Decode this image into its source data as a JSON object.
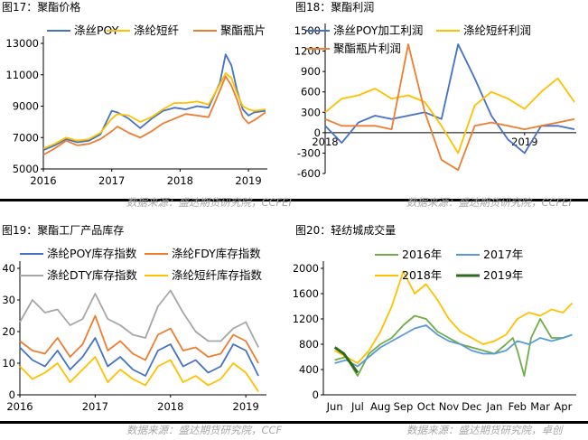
{
  "charts": [
    {
      "fig_title": "图17：聚酯价格",
      "source": "数据来源：盛达期货研究院，CCFEI",
      "chart_data": {
        "type": "line",
        "x_start": "2016-01",
        "x_end": "2019-04",
        "x_ticks": [
          "2016",
          "2017",
          "2018",
          "2019"
        ],
        "x_tick_positions": [
          "2016-01",
          "2017-01",
          "2018-01",
          "2019-01"
        ],
        "ylim": [
          5000,
          13000
        ],
        "y_ticks": [
          "5000",
          "7000",
          "9000",
          "11000",
          "13000"
        ],
        "legend_position": "top",
        "series": [
          {
            "name": "涤丝POY",
            "color": "#4472c4",
            "x": [
              "2016-01",
              "2016-03",
              "2016-05",
              "2016-07",
              "2016-09",
              "2016-11",
              "2017-01",
              "2017-02",
              "2017-04",
              "2017-06",
              "2017-08",
              "2017-10",
              "2017-12",
              "2018-02",
              "2018-04",
              "2018-06",
              "2018-08",
              "2018-09",
              "2018-10",
              "2018-11",
              "2018-12",
              "2019-01",
              "2019-02",
              "2019-04"
            ],
            "values": [
              6200,
              6500,
              6900,
              6700,
              6800,
              7200,
              8700,
              8600,
              8200,
              7600,
              8200,
              8700,
              8900,
              8800,
              9000,
              8900,
              10500,
              12300,
              11600,
              10000,
              8800,
              8400,
              8600,
              8700
            ]
          },
          {
            "name": "涤纶短纤",
            "color": "#ffc000",
            "x": [
              "2016-01",
              "2016-03",
              "2016-05",
              "2016-07",
              "2016-09",
              "2016-11",
              "2017-01",
              "2017-02",
              "2017-04",
              "2017-06",
              "2017-08",
              "2017-10",
              "2017-12",
              "2018-02",
              "2018-04",
              "2018-06",
              "2018-08",
              "2018-09",
              "2018-10",
              "2018-11",
              "2018-12",
              "2019-01",
              "2019-02",
              "2019-04"
            ],
            "values": [
              6300,
              6600,
              7000,
              6800,
              6900,
              7300,
              8200,
              8500,
              8400,
              8000,
              8300,
              8800,
              9200,
              9200,
              9300,
              9100,
              10400,
              11100,
              10800,
              9800,
              9000,
              8800,
              8700,
              8800
            ]
          },
          {
            "name": "聚酯瓶片",
            "color": "#ed7d31",
            "x": [
              "2016-01",
              "2016-03",
              "2016-05",
              "2016-07",
              "2016-09",
              "2016-11",
              "2017-01",
              "2017-02",
              "2017-04",
              "2017-06",
              "2017-08",
              "2017-10",
              "2017-12",
              "2018-02",
              "2018-04",
              "2018-06",
              "2018-08",
              "2018-09",
              "2018-10",
              "2018-11",
              "2018-12",
              "2019-01",
              "2019-02",
              "2019-04"
            ],
            "values": [
              5900,
              6300,
              6800,
              6500,
              6600,
              6900,
              7400,
              7700,
              7300,
              7000,
              7400,
              7900,
              8200,
              8500,
              8400,
              8300,
              10000,
              10900,
              10300,
              9400,
              8300,
              7900,
              8100,
              8600
            ]
          }
        ]
      }
    },
    {
      "fig_title": "图18：聚酯利润",
      "source": "数据来源：盛达期货研究院，CCFEI",
      "chart_data": {
        "type": "line",
        "x_start": "2018-01",
        "x_end": "2019-04",
        "x_ticks": [
          "2018",
          "2019"
        ],
        "x_tick_positions": [
          "2018-01",
          "2019-01"
        ],
        "ylim": [
          -600,
          1500
        ],
        "y_ticks": [
          "-600",
          "-300",
          "0",
          "300",
          "600",
          "900",
          "1200",
          "1500"
        ],
        "legend_position": "top",
        "series": [
          {
            "name": "涤丝POY加工利润",
            "color": "#4472c4",
            "x": [
              "2018-01",
              "2018-02",
              "2018-03",
              "2018-04",
              "2018-05",
              "2018-06",
              "2018-07",
              "2018-08",
              "2018-09",
              "2018-10",
              "2018-11",
              "2018-12",
              "2019-01",
              "2019-02",
              "2019-03",
              "2019-04"
            ],
            "values": [
              100,
              -150,
              150,
              250,
              200,
              250,
              300,
              200,
              1300,
              800,
              250,
              -100,
              -300,
              100,
              100,
              50
            ]
          },
          {
            "name": "涤纶短纤利润",
            "color": "#ffc000",
            "x": [
              "2018-01",
              "2018-02",
              "2018-03",
              "2018-04",
              "2018-05",
              "2018-06",
              "2018-07",
              "2018-08",
              "2018-09",
              "2018-10",
              "2018-11",
              "2018-12",
              "2019-01",
              "2019-02",
              "2019-03",
              "2019-04"
            ],
            "values": [
              300,
              500,
              550,
              650,
              500,
              550,
              450,
              100,
              -300,
              400,
              600,
              500,
              350,
              600,
              800,
              450
            ]
          },
          {
            "name": "聚酯瓶片利润",
            "color": "#ed7d31",
            "x": [
              "2018-01",
              "2018-02",
              "2018-03",
              "2018-04",
              "2018-05",
              "2018-06",
              "2018-07",
              "2018-08",
              "2018-09",
              "2018-10",
              "2018-11",
              "2018-12",
              "2019-01",
              "2019-02",
              "2019-03",
              "2019-04"
            ],
            "values": [
              200,
              100,
              100,
              100,
              50,
              1300,
              300,
              -400,
              -550,
              100,
              150,
              100,
              50,
              100,
              150,
              200
            ]
          }
        ]
      }
    },
    {
      "fig_title": "图19：聚酯工厂产品库存",
      "source": "数据来源：盛达期货研究院，CCF",
      "chart_data": {
        "type": "line",
        "x_start": "2016-01",
        "x_end": "2019-04",
        "x_ticks": [
          "2016",
          "2017",
          "2018",
          "2019"
        ],
        "x_tick_positions": [
          "2016-01",
          "2017-01",
          "2018-01",
          "2019-01"
        ],
        "ylim": [
          0,
          40
        ],
        "y_ticks": [
          "0",
          "10",
          "20",
          "30",
          "40"
        ],
        "legend_position": "top",
        "series": [
          {
            "name": "涤纶POY库存指数",
            "color": "#4472c4",
            "x": [
              "2016-01",
              "2016-03",
              "2016-05",
              "2016-07",
              "2016-09",
              "2016-11",
              "2017-01",
              "2017-03",
              "2017-05",
              "2017-07",
              "2017-09",
              "2017-11",
              "2018-01",
              "2018-03",
              "2018-05",
              "2018-07",
              "2018-09",
              "2018-11",
              "2019-01",
              "2019-03"
            ],
            "values": [
              15,
              11,
              9,
              14,
              8,
              12,
              18,
              9,
              12,
              8,
              6,
              14,
              16,
              9,
              11,
              7,
              9,
              16,
              14,
              6
            ]
          },
          {
            "name": "涤纶FDY库存指数",
            "color": "#ed7d31",
            "x": [
              "2016-01",
              "2016-03",
              "2016-05",
              "2016-07",
              "2016-09",
              "2016-11",
              "2017-01",
              "2017-03",
              "2017-05",
              "2017-07",
              "2017-09",
              "2017-11",
              "2018-01",
              "2018-03",
              "2018-05",
              "2018-07",
              "2018-09",
              "2018-11",
              "2019-01",
              "2019-03"
            ],
            "values": [
              17,
              14,
              13,
              18,
              12,
              16,
              25,
              14,
              17,
              13,
              11,
              19,
              21,
              14,
              15,
              12,
              13,
              19,
              17,
              10
            ]
          },
          {
            "name": "涤纶DTY库存指数",
            "color": "#a6a6a6",
            "x": [
              "2016-01",
              "2016-03",
              "2016-05",
              "2016-07",
              "2016-09",
              "2016-11",
              "2017-01",
              "2017-03",
              "2017-05",
              "2017-07",
              "2017-09",
              "2017-11",
              "2018-01",
              "2018-03",
              "2018-05",
              "2018-07",
              "2018-09",
              "2018-11",
              "2019-01",
              "2019-03"
            ],
            "values": [
              23,
              30,
              26,
              27,
              22,
              24,
              32,
              24,
              22,
              19,
              18,
              28,
              33,
              26,
              20,
              17,
              17,
              21,
              23,
              15
            ]
          },
          {
            "name": "涤纶短纤库存指数",
            "color": "#ffc000",
            "x": [
              "2016-01",
              "2016-03",
              "2016-05",
              "2016-07",
              "2016-09",
              "2016-11",
              "2017-01",
              "2017-03",
              "2017-05",
              "2017-07",
              "2017-09",
              "2017-11",
              "2018-01",
              "2018-03",
              "2018-05",
              "2018-07",
              "2018-09",
              "2018-11",
              "2019-01",
              "2019-03"
            ],
            "values": [
              9,
              5,
              7,
              10,
              4,
              8,
              12,
              4,
              8,
              5,
              3,
              9,
              11,
              4,
              6,
              3,
              5,
              10,
              7,
              1
            ]
          }
        ]
      }
    },
    {
      "fig_title": "图20：轻纺城成交量",
      "source": "数据来源：盛达期货研究院，卓创",
      "chart_data": {
        "type": "line",
        "x_categories": [
          "Jun",
          "Jul",
          "Aug",
          "Sep",
          "Oct",
          "Nov",
          "Dec",
          "Jan",
          "Feb",
          "Mar",
          "Apr"
        ],
        "ylim": [
          0,
          2000
        ],
        "y_ticks": [
          "0",
          "400",
          "800",
          "1200",
          "1600",
          "2000"
        ],
        "legend_position": "top",
        "series": [
          {
            "name": "2016年",
            "color": "#70ad47",
            "x": [
              0,
              0.5,
              1,
              1.5,
              2,
              2.5,
              3,
              3.5,
              4,
              4.5,
              5,
              5.5,
              6,
              6.5,
              7,
              7.5,
              7.8,
              8,
              8.3,
              8.6,
              9,
              9.5,
              10,
              10.4
            ],
            "values": [
              550,
              600,
              300,
              650,
              800,
              900,
              1100,
              1250,
              1200,
              1000,
              900,
              800,
              750,
              700,
              650,
              800,
              900,
              700,
              300,
              900,
              1200,
              900,
              900,
              950
            ]
          },
          {
            "name": "2017年",
            "color": "#5b9bd5",
            "x": [
              0,
              0.5,
              1,
              1.5,
              2,
              2.5,
              3,
              3.5,
              4,
              4.5,
              5,
              5.5,
              6,
              6.5,
              7,
              7.5,
              8,
              8.5,
              9,
              9.5,
              10,
              10.4
            ],
            "values": [
              500,
              550,
              450,
              600,
              750,
              850,
              950,
              1050,
              1100,
              950,
              850,
              800,
              700,
              650,
              650,
              700,
              850,
              800,
              900,
              850,
              900,
              950
            ]
          },
          {
            "name": "2018年",
            "color": "#ffc000",
            "x": [
              0,
              0.5,
              1,
              1.5,
              2,
              2.5,
              3,
              3.5,
              4,
              4.5,
              5,
              5.5,
              6,
              6.5,
              7,
              7.5,
              8,
              8.5,
              9,
              9.5,
              10,
              10.4
            ],
            "values": [
              700,
              600,
              500,
              700,
              1000,
              1400,
              1950,
              1600,
              1750,
              1500,
              1200,
              1000,
              900,
              800,
              850,
              950,
              1200,
              1300,
              1250,
              1350,
              1300,
              1450
            ]
          },
          {
            "name": "2019年",
            "color": "#2e6b1f",
            "x": [
              0,
              0.2,
              0.4,
              0.6,
              0.8,
              1.0
            ],
            "values": [
              750,
              700,
              650,
              550,
              450,
              350
            ]
          }
        ]
      }
    }
  ]
}
